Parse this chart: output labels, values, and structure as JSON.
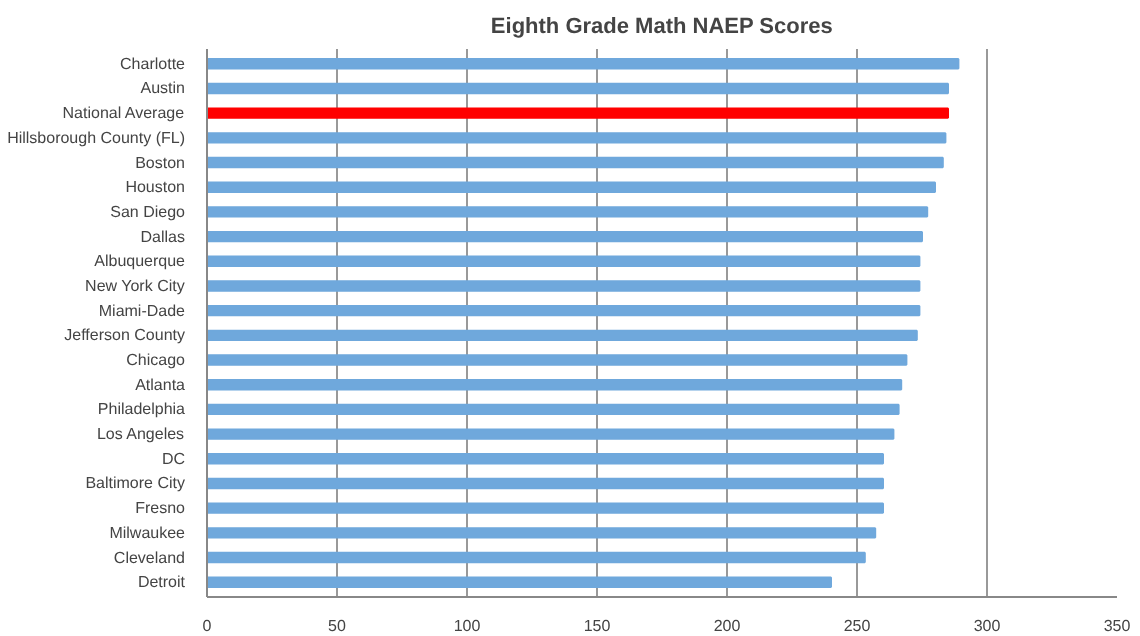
{
  "chart_data": {
    "type": "bar",
    "orientation": "horizontal",
    "title": "Eighth Grade Math NAEP Scores",
    "categories": [
      "Charlotte",
      "Austin",
      "National Average",
      "Hillsborough County (FL)",
      "Boston",
      "Houston",
      "San Diego",
      "Dallas",
      "Albuquerque",
      "New York City",
      "Miami-Dade",
      "Jefferson County",
      "Chicago",
      "Atlanta",
      "Philadelphia",
      "Los Angeles",
      "DC",
      "Baltimore City",
      "Fresno",
      "Milwaukee",
      "Cleveland",
      "Detroit"
    ],
    "values": [
      289,
      285,
      285,
      284,
      283,
      280,
      277,
      275,
      274,
      274,
      274,
      273,
      269,
      267,
      266,
      264,
      260,
      260,
      260,
      257,
      253,
      240
    ],
    "colors": [
      "#6fa8dc",
      "#6fa8dc",
      "#ff0000",
      "#6fa8dc",
      "#6fa8dc",
      "#6fa8dc",
      "#6fa8dc",
      "#6fa8dc",
      "#6fa8dc",
      "#6fa8dc",
      "#6fa8dc",
      "#6fa8dc",
      "#6fa8dc",
      "#6fa8dc",
      "#6fa8dc",
      "#6fa8dc",
      "#6fa8dc",
      "#6fa8dc",
      "#6fa8dc",
      "#6fa8dc",
      "#6fa8dc",
      "#6fa8dc"
    ],
    "xlim": [
      0,
      350
    ],
    "xticks": [
      0,
      50,
      100,
      150,
      200,
      250,
      300,
      350
    ],
    "grid": "x"
  }
}
